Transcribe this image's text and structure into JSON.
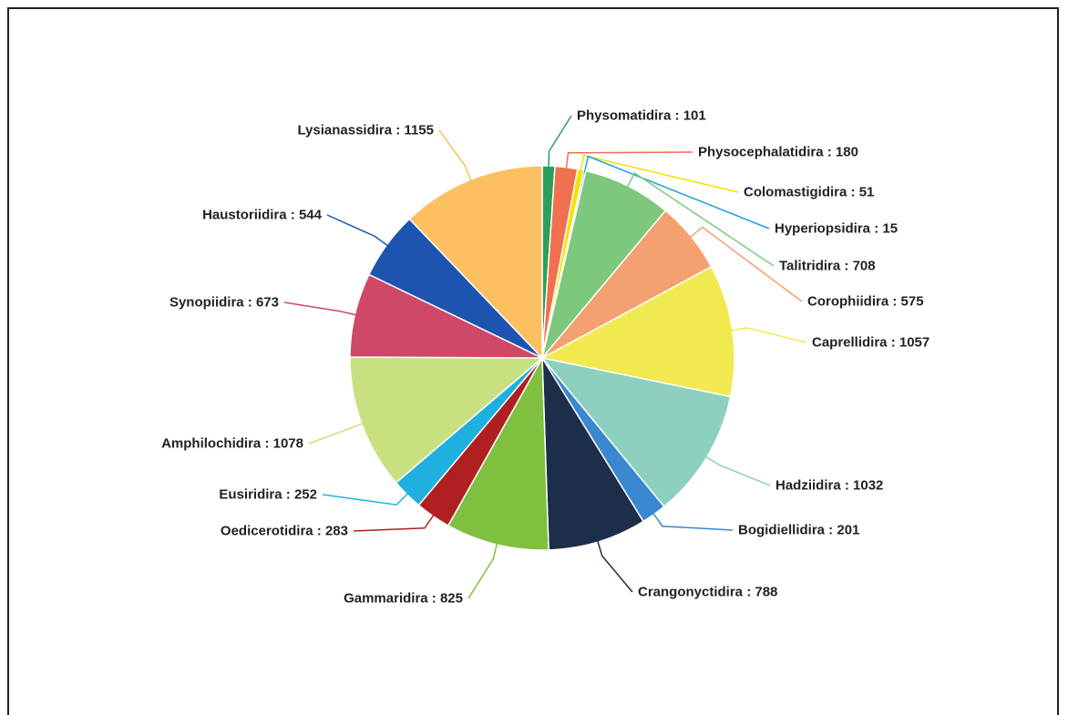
{
  "chart_data": {
    "type": "pie",
    "categories": [
      "Physomatidira",
      "Physocephalatidira",
      "Colomastigidira",
      "Hyperiopsidira",
      "Talitridira",
      "Corophiidira",
      "Caprellidira",
      "Hadziidira",
      "Bogidiellidira",
      "Crangonyctidira",
      "Gammaridira",
      "Oedicerotidira",
      "Eusiridira",
      "Amphilochidira",
      "Synopiidira",
      "Haustoriidira",
      "Lysianassidira"
    ],
    "values": [
      101,
      180,
      51,
      15,
      708,
      575,
      1057,
      1032,
      201,
      788,
      825,
      283,
      252,
      1078,
      673,
      544,
      1155
    ],
    "colors": [
      "#2ca05a",
      "#f07050",
      "#f5e000",
      "#1ea0e0",
      "#7ec87e",
      "#f5a070",
      "#f0ea50",
      "#8ed0c0",
      "#3a88d0",
      "#1c2e4a",
      "#80c040",
      "#b02020",
      "#20b0e0",
      "#c8e080",
      "#d04868",
      "#1c54b0",
      "#fcc060"
    ]
  }
}
